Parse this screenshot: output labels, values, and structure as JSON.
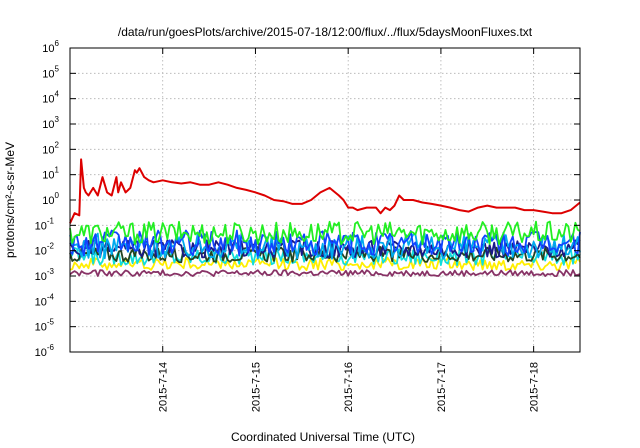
{
  "chart_data": {
    "type": "line",
    "title": "/data/run/goesPlots/archive/2015-07-18/12:00/flux/../flux/5daysMoonFluxes.txt",
    "xlabel": "Coordinated Universal Time (UTC)",
    "ylabel": "protons/cm²-s-sr-MeV",
    "yscale": "log",
    "ylim": [
      1e-06,
      1000000.0
    ],
    "xlim": [
      0,
      5.5
    ],
    "x_unit": "days from 2015-07-13 00:00 UTC",
    "grid": true,
    "y_ticks": [
      {
        "value": 1e-06,
        "base": "10",
        "exp": "-6"
      },
      {
        "value": 1e-05,
        "base": "10",
        "exp": "-5"
      },
      {
        "value": 0.0001,
        "base": "10",
        "exp": "-4"
      },
      {
        "value": 0.001,
        "base": "10",
        "exp": "-3"
      },
      {
        "value": 0.01,
        "base": "10",
        "exp": "-2"
      },
      {
        "value": 0.1,
        "base": "10",
        "exp": "-1"
      },
      {
        "value": 1.0,
        "base": "10",
        "exp": "0"
      },
      {
        "value": 10.0,
        "base": "10",
        "exp": "1"
      },
      {
        "value": 100.0,
        "base": "10",
        "exp": "2"
      },
      {
        "value": 1000.0,
        "base": "10",
        "exp": "3"
      },
      {
        "value": 10000.0,
        "base": "10",
        "exp": "4"
      },
      {
        "value": 100000.0,
        "base": "10",
        "exp": "5"
      },
      {
        "value": 1000000.0,
        "base": "10",
        "exp": "6"
      }
    ],
    "x_ticks": [
      {
        "value": 1,
        "label": "2015-7-14"
      },
      {
        "value": 2,
        "label": "2015-7-15"
      },
      {
        "value": 3,
        "label": "2015-7-16"
      },
      {
        "value": 4,
        "label": "2015-7-17"
      },
      {
        "value": 5,
        "label": "2015-7-18"
      }
    ],
    "series": [
      {
        "color": "#dd0000",
        "noise": 0,
        "x": [
          0,
          0.05,
          0.1,
          0.12,
          0.15,
          0.17,
          0.2,
          0.25,
          0.3,
          0.35,
          0.4,
          0.45,
          0.5,
          0.52,
          0.55,
          0.6,
          0.65,
          0.7,
          0.72,
          0.75,
          0.8,
          0.85,
          0.9,
          1.0,
          1.1,
          1.2,
          1.3,
          1.4,
          1.5,
          1.6,
          1.7,
          1.8,
          1.9,
          2.0,
          2.1,
          2.2,
          2.3,
          2.4,
          2.5,
          2.6,
          2.7,
          2.8,
          2.9,
          2.95,
          3.0,
          3.05,
          3.1,
          3.2,
          3.3,
          3.35,
          3.4,
          3.45,
          3.5,
          3.55,
          3.6,
          3.7,
          3.8,
          3.9,
          4.0,
          4.1,
          4.2,
          4.3,
          4.4,
          4.5,
          4.6,
          4.7,
          4.8,
          4.9,
          5.0,
          5.1,
          5.2,
          5.3,
          5.4,
          5.5
        ],
        "y": [
          0.12,
          0.3,
          0.25,
          40,
          3,
          2,
          1.5,
          3,
          1.5,
          8,
          2,
          1.5,
          8,
          2,
          5,
          2,
          3,
          15,
          12,
          18,
          8,
          6,
          5,
          6,
          5,
          4.5,
          5,
          4,
          4,
          5,
          4,
          3,
          2.5,
          2,
          1.5,
          1,
          0.9,
          0.7,
          0.7,
          1,
          2,
          3,
          1.5,
          1,
          0.5,
          0.5,
          0.4,
          0.5,
          0.5,
          0.3,
          0.5,
          0.4,
          0.6,
          1.5,
          1.0,
          1.0,
          0.8,
          0.7,
          0.6,
          0.5,
          0.4,
          0.35,
          0.5,
          0.6,
          0.5,
          0.5,
          0.5,
          0.4,
          0.4,
          0.35,
          0.3,
          0.3,
          0.4,
          0.8
        ]
      },
      {
        "color": "#22ee22",
        "noise": 0.45,
        "x": [
          0,
          5.5
        ],
        "y": [
          0.05,
          0.05
        ]
      },
      {
        "color": "#00aaee",
        "noise": 0.5,
        "x": [
          0,
          5.5
        ],
        "y": [
          0.015,
          0.015
        ]
      },
      {
        "color": "#1144ff",
        "noise": 0.5,
        "x": [
          0,
          5.5
        ],
        "y": [
          0.02,
          0.02
        ]
      },
      {
        "color": "#11dddd",
        "noise": 0.35,
        "x": [
          0,
          5.5
        ],
        "y": [
          0.006,
          0.006
        ]
      },
      {
        "color": "#224422",
        "noise": 0.3,
        "x": [
          0,
          5.5
        ],
        "y": [
          0.007,
          0.007
        ]
      },
      {
        "color": "#1a1a88",
        "noise": 0.35,
        "x": [
          0,
          5.5
        ],
        "y": [
          0.012,
          0.012
        ]
      },
      {
        "color": "#ffee00",
        "noise": 0.25,
        "x": [
          0,
          5.5
        ],
        "y": [
          0.003,
          0.003
        ]
      },
      {
        "color": "#883366",
        "noise": 0.12,
        "x": [
          0,
          5.5
        ],
        "y": [
          0.0013,
          0.0013
        ]
      }
    ]
  }
}
